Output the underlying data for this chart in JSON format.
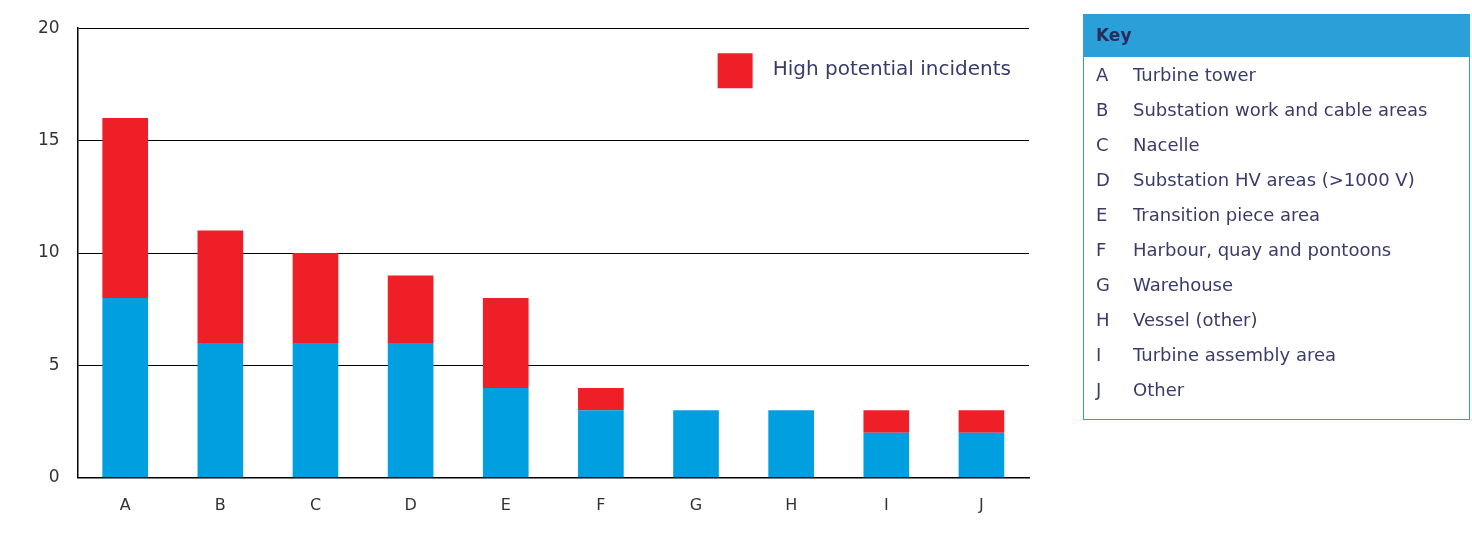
{
  "chart_data": {
    "type": "bar",
    "stacked": true,
    "categories": [
      "A",
      "B",
      "C",
      "D",
      "E",
      "F",
      "G",
      "H",
      "I",
      "J"
    ],
    "series": [
      {
        "color": "#009fe0",
        "values": [
          8,
          6,
          6,
          6,
          4,
          3,
          3,
          3,
          2,
          2
        ]
      },
      {
        "name": "High potential incidents",
        "color": "#ef1f28",
        "values": [
          8,
          5,
          4,
          3,
          4,
          1,
          0,
          0,
          1,
          1
        ]
      }
    ],
    "ylim": [
      0,
      20
    ],
    "yticks": [
      0,
      5,
      10,
      15,
      20
    ],
    "grid": "y",
    "legend": "top right",
    "annotations": [
      "Key",
      "A",
      "Turbine tower",
      "B",
      "Substation work and cable areas",
      "C",
      "Nacelle",
      "D",
      "Substation HV areas (>1000 V)",
      "E",
      "Transition piece area",
      "F",
      "Harbour, quay and pontoons",
      "G",
      "Warehouse",
      "H",
      "Vessel (other)",
      "I",
      "Turbine assembly area",
      "J",
      "Other"
    ]
  }
}
